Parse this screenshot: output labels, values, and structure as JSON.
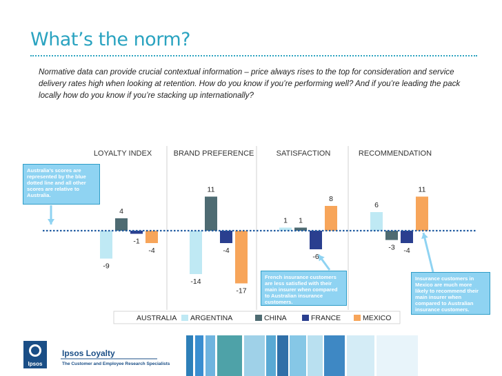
{
  "page": {
    "title": "What’s the norm?",
    "intro": "Normative data can provide crucial contextual information – price always rises to the top for consideration and service delivery rates high when looking at retention. How do you know if you’re performing well? And if you’re leading the pack locally how do you know if you’re stacking up internationally?"
  },
  "callouts": {
    "australia": "Australia’s scores are represented by the blue dotted line and all other scores are relative to Australia.",
    "france": "French insurance customers are less satisfied with their main insurer when compared to Australian insurance customers.",
    "mexico": "Insurance customers in Mexico are much more likely to recommend their main insurer when compared to Australian insurance customers."
  },
  "footer": {
    "logo_text": "Ipsos",
    "brand": "Ipsos Loyalty",
    "tagline": "The Customer and Employee Research Specialists"
  },
  "colors": {
    "title": "#2aa3c0",
    "argentina": "#bfe9f4",
    "china": "#4e6b72",
    "france": "#2a3f8f",
    "mexico": "#f7a55a",
    "australia_line": "#1f5aa0",
    "callout_fill": "#8fd3f2"
  },
  "chart_data": {
    "type": "bar",
    "categories": [
      "LOYALTY INDEX",
      "BRAND PREFERENCE",
      "SATISFACTION",
      "RECOMMENDATION"
    ],
    "baseline": {
      "name": "AUSTRALIA",
      "value": 0,
      "style": "blue dotted line"
    },
    "series": [
      {
        "name": "ARGENTINA",
        "values": [
          -9,
          -14,
          1,
          6
        ]
      },
      {
        "name": "CHINA",
        "values": [
          4,
          11,
          1,
          -3
        ]
      },
      {
        "name": "FRANCE",
        "values": [
          -1,
          -4,
          -6,
          -4
        ]
      },
      {
        "name": "MEXICO",
        "values": [
          -4,
          -17,
          8,
          11
        ]
      }
    ],
    "legend": [
      "AUSTRALIA",
      "ARGENTINA",
      "CHINA",
      "FRANCE",
      "MEXICO"
    ],
    "legend_position": "bottom",
    "grid": false
  }
}
